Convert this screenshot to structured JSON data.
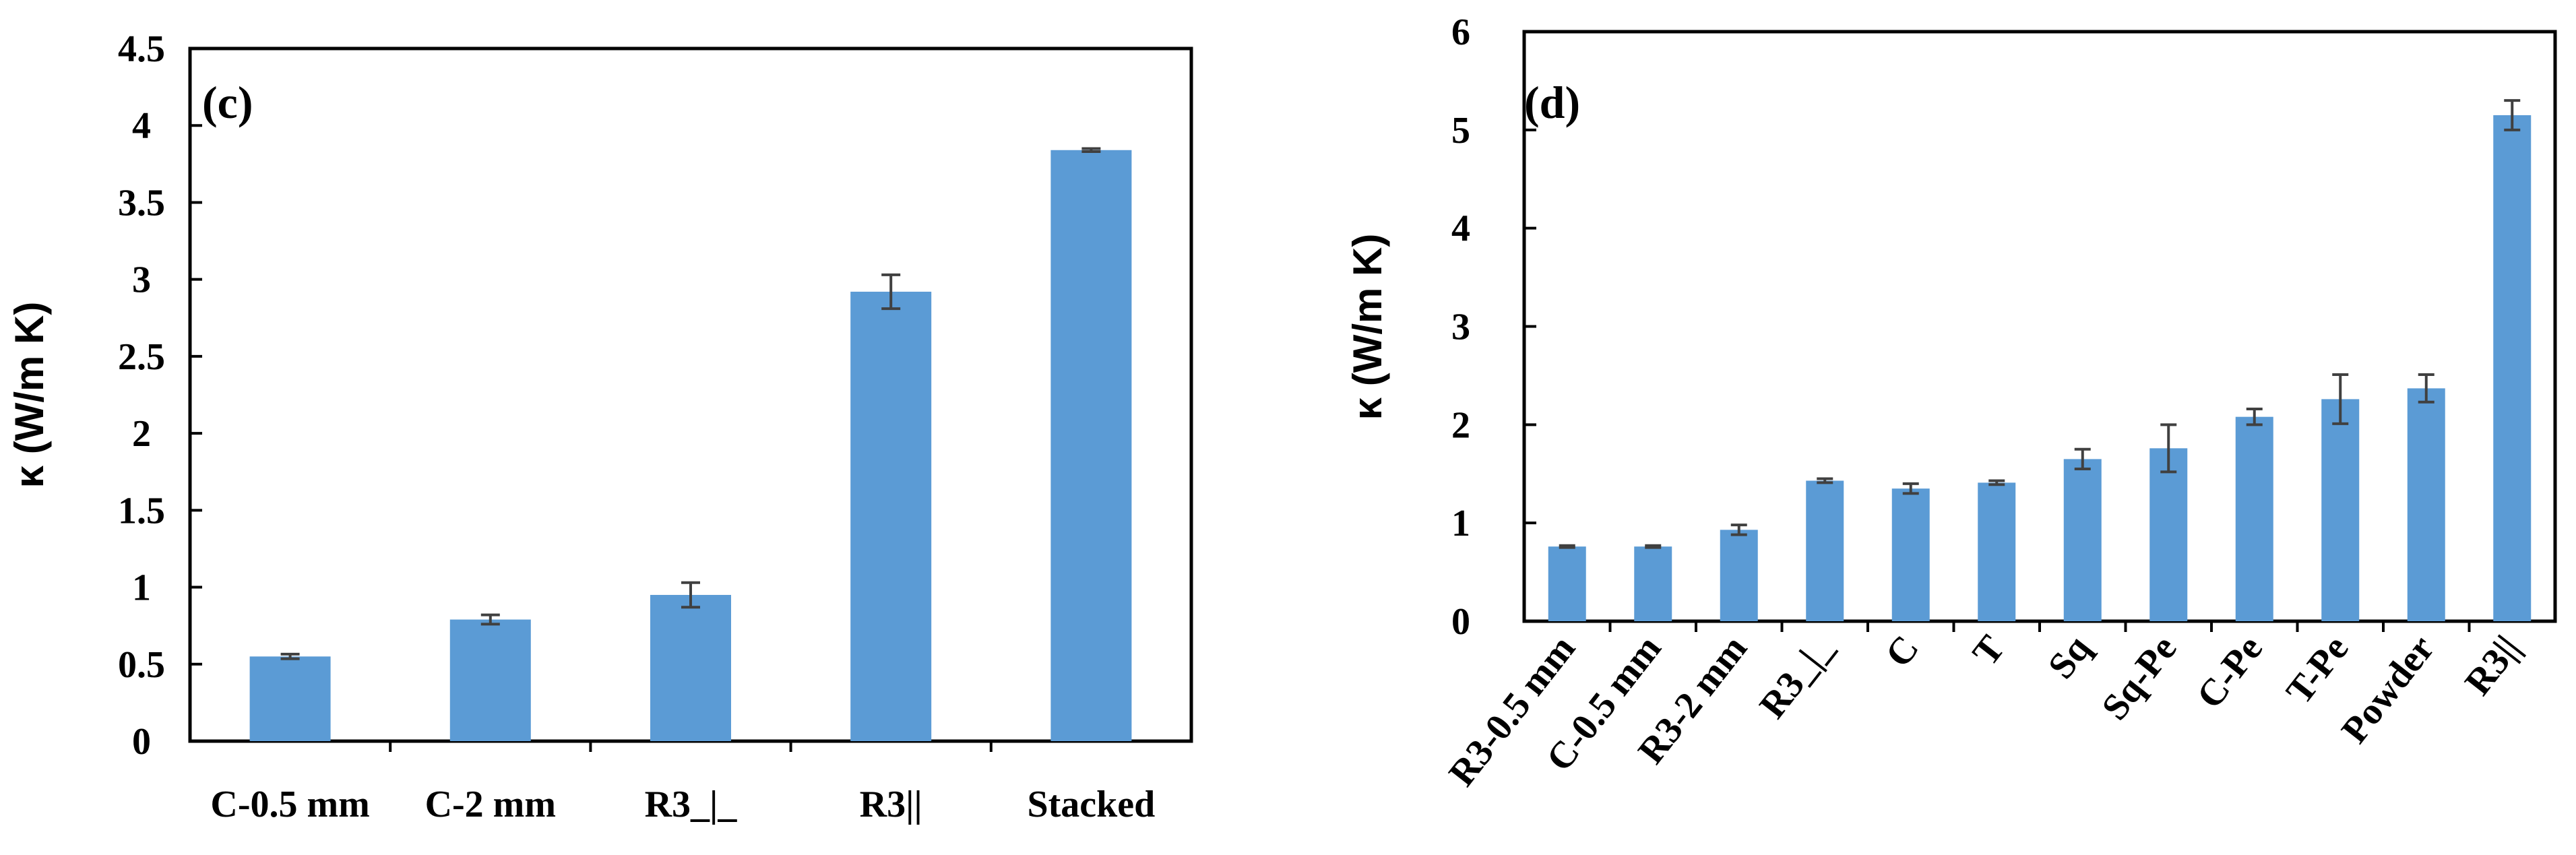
{
  "chart_data": [
    {
      "type": "bar",
      "panel_label": "(c)",
      "title": "",
      "xlabel": "",
      "ylabel": "κ (W/m K)",
      "ylim": [
        0,
        4.5
      ],
      "y_ticks": [
        "0",
        "0.5",
        "1",
        "1.5",
        "2",
        "2.5",
        "3",
        "3.5",
        "4",
        "4.5"
      ],
      "grid": false,
      "bar_color": "#5B9BD5",
      "error_color": "#404040",
      "categories": [
        "C-0.5 mm",
        "C-2 mm",
        "R3_|_",
        "R3||",
        "Stacked"
      ],
      "values": [
        0.55,
        0.79,
        0.95,
        2.92,
        3.84
      ],
      "errors": [
        0.015,
        0.03,
        0.08,
        0.11,
        0.01
      ]
    },
    {
      "type": "bar",
      "panel_label": "(d)",
      "title": "",
      "xlabel": "",
      "ylabel": "κ (W/m K)",
      "ylim": [
        0,
        6
      ],
      "y_ticks": [
        "0",
        "1",
        "2",
        "3",
        "4",
        "5",
        "6"
      ],
      "grid": false,
      "bar_color": "#5B9BD5",
      "error_color": "#404040",
      "categories": [
        "R3-0.5 mm",
        "C-0.5 mm",
        "R3-2 mm",
        "R3_|_",
        "C",
        "T",
        "Sq",
        "Sq-Pe",
        "C-Pe",
        "T-Pe",
        "Powder",
        "R3||"
      ],
      "values": [
        0.76,
        0.76,
        0.93,
        1.43,
        1.35,
        1.41,
        1.65,
        1.76,
        2.08,
        2.26,
        2.37,
        5.15
      ],
      "errors": [
        0.01,
        0.01,
        0.05,
        0.02,
        0.05,
        0.02,
        0.1,
        0.24,
        0.08,
        0.25,
        0.14,
        0.15
      ]
    }
  ]
}
